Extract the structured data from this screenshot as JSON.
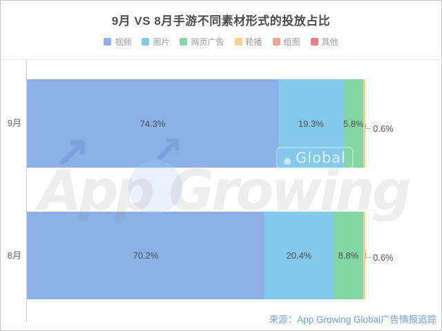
{
  "title": "9月 VS 8月手游不同素材形式的投放占比",
  "watermark": {
    "main": "App Growing",
    "badge": "Global",
    "arrow_icon": "↗"
  },
  "source": "来源：App Growing Global广告情报追踪",
  "colors": {
    "video_blue": "#8ab0e6",
    "image_lightblue": "#85c9ea",
    "webad_green": "#84d7a5",
    "carousel_orange": "#f8ce8b",
    "imagegroup_salmon": "#f0a195",
    "other_red": "#e97e8f",
    "source_text_blue": "#6fa3e8",
    "title_gray": "#4c4c4c"
  },
  "chart_data": {
    "type": "bar",
    "orientation": "horizontal",
    "stacked": true,
    "title": "9月 VS 8月手游不同素材形式的投放占比",
    "unit": "%",
    "xlim": [
      0,
      100
    ],
    "grid": false,
    "legend_position": "top",
    "categories": [
      "9月",
      "8月"
    ],
    "series": [
      {
        "name": "视频",
        "color": "#8ab0e6",
        "values": [
          74.3,
          70.2
        ]
      },
      {
        "name": "图片",
        "color": "#85c9ea",
        "values": [
          19.3,
          20.4
        ]
      },
      {
        "name": "网页广告",
        "color": "#84d7a5",
        "values": [
          5.8,
          8.8
        ]
      },
      {
        "name": "轮播",
        "color": "#f8ce8b",
        "values": [
          0.6,
          0.6
        ]
      },
      {
        "name": "组图",
        "color": "#f0a195",
        "values": [
          0,
          0
        ]
      },
      {
        "name": "其他",
        "color": "#e97e8f",
        "values": [
          0,
          0
        ]
      }
    ],
    "inside_labels": [
      [
        "74.3%",
        "19.3%",
        "5.8%"
      ],
      [
        "70.2%",
        "20.4%",
        "8.8%"
      ]
    ],
    "outside_labels": [
      "0.6%",
      "0.6%"
    ]
  }
}
